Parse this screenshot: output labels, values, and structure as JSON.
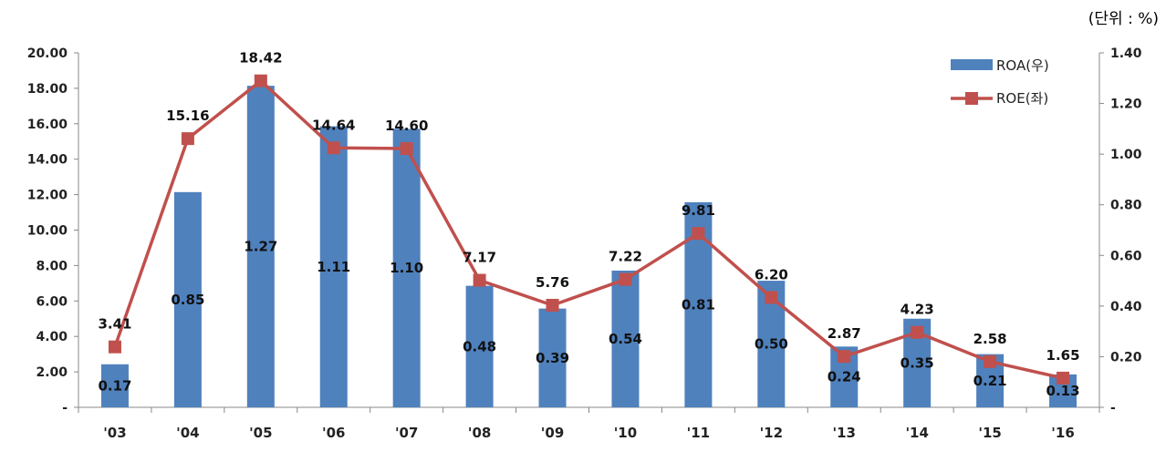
{
  "unit_label": "(단위 : %)",
  "chart_data": {
    "type": "bar",
    "categories": [
      "'03",
      "'04",
      "'05",
      "'06",
      "'07",
      "'08",
      "'09",
      "'10",
      "'11",
      "'12",
      "'13",
      "'14",
      "'15",
      "'16"
    ],
    "series": [
      {
        "name": "ROA(우)",
        "type": "bar",
        "axis": "right",
        "color": "#4f81bd",
        "values": [
          0.17,
          0.85,
          1.27,
          1.11,
          1.1,
          0.48,
          0.39,
          0.54,
          0.81,
          0.5,
          0.24,
          0.35,
          0.21,
          0.13
        ]
      },
      {
        "name": "ROE(좌)",
        "type": "line",
        "axis": "left",
        "color": "#c0504d",
        "values": [
          3.41,
          15.16,
          18.42,
          14.64,
          14.6,
          7.17,
          5.76,
          7.22,
          9.81,
          6.2,
          2.87,
          4.23,
          2.58,
          1.65
        ]
      }
    ],
    "y_left": {
      "ylim": [
        0,
        20
      ],
      "tick_values": [
        0,
        2,
        4,
        6,
        8,
        10,
        12,
        14,
        16,
        18,
        20
      ],
      "tick_labels": [
        "-",
        "2.00",
        "4.00",
        "6.00",
        "8.00",
        "10.00",
        "12.00",
        "14.00",
        "16.00",
        "18.00",
        "20.00"
      ]
    },
    "y_right": {
      "ylim": [
        0,
        1.4
      ],
      "tick_values": [
        0,
        0.2,
        0.4,
        0.6,
        0.8,
        1.0,
        1.2,
        1.4
      ],
      "tick_labels": [
        "-",
        "0.20",
        "0.40",
        "0.60",
        "0.80",
        "1.00",
        "1.20",
        "1.40"
      ]
    },
    "legend_position": "top-right",
    "grid": false
  }
}
